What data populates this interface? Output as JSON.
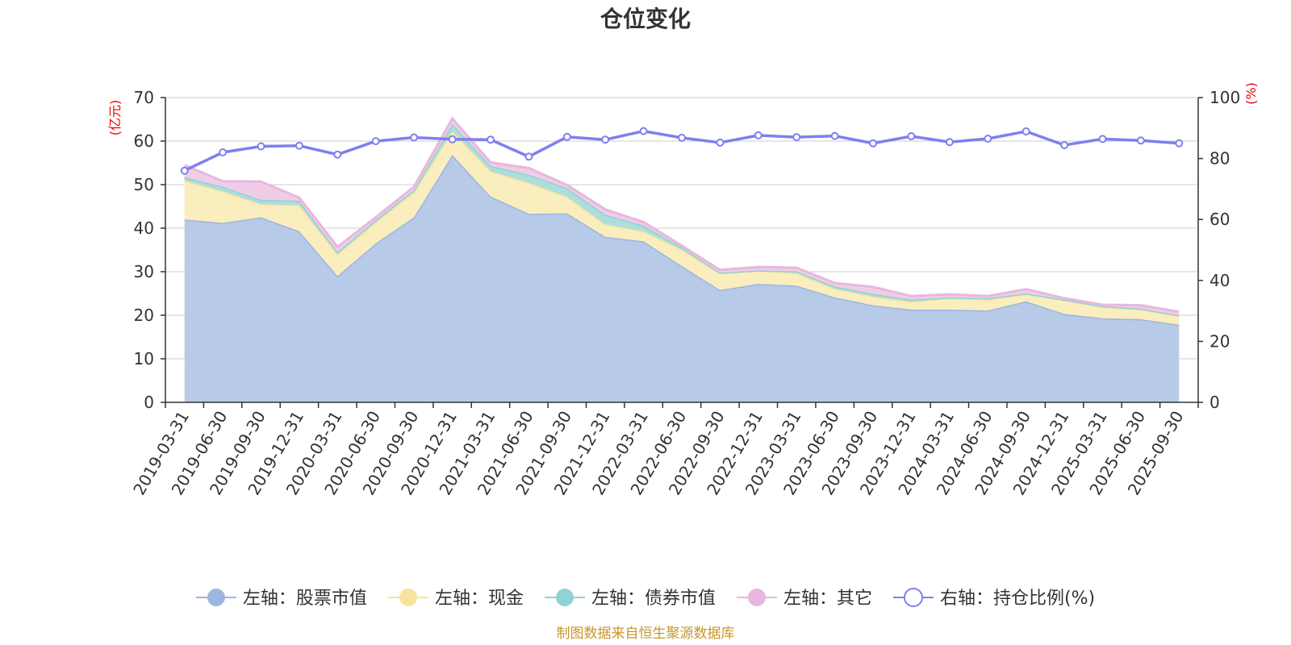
{
  "chart_data": {
    "type": "area",
    "title": "仓位变化",
    "left_unit": "(亿元)",
    "right_unit": "(%)",
    "x": [
      "2019-03-31",
      "2019-06-30",
      "2019-09-30",
      "2019-12-31",
      "2020-03-31",
      "2020-06-30",
      "2020-09-30",
      "2020-12-31",
      "2021-03-31",
      "2021-06-30",
      "2021-09-30",
      "2021-12-31",
      "2022-03-31",
      "2022-06-30",
      "2022-09-30",
      "2022-12-31",
      "2023-03-31",
      "2023-06-30",
      "2023-09-30",
      "2023-12-31",
      "2024-03-31",
      "2024-06-30",
      "2024-09-30",
      "2024-12-31",
      "2025-03-31",
      "2025-06-30",
      "2025-09-30"
    ],
    "y_left": {
      "min": 0,
      "max": 70,
      "ticks": [
        0,
        10,
        20,
        30,
        40,
        50,
        60,
        70
      ]
    },
    "y_right": {
      "min": 0,
      "max": 100,
      "ticks": [
        0,
        20,
        40,
        60,
        80,
        100
      ]
    },
    "series": [
      {
        "name": "左轴：股票市值",
        "axis": "left",
        "stack": true,
        "color": "#9bb6e0",
        "fill": "#b7cbe9",
        "values": [
          42.0,
          41.2,
          42.5,
          39.3,
          29.0,
          36.5,
          42.5,
          56.8,
          47.3,
          43.3,
          43.4,
          38.0,
          37.0,
          31.3,
          25.8,
          27.2,
          26.8,
          24.1,
          22.3,
          21.3,
          21.3,
          21.1,
          23.2,
          20.3,
          19.3,
          19.1,
          17.8
        ]
      },
      {
        "name": "左轴：现金",
        "axis": "left",
        "stack": true,
        "color": "#f8e39c",
        "fill": "#faedbe",
        "values": [
          8.9,
          7.3,
          3.0,
          6.0,
          5.0,
          4.9,
          5.8,
          5.5,
          5.8,
          7.1,
          3.8,
          2.9,
          2.3,
          3.8,
          3.8,
          3.0,
          2.9,
          2.0,
          2.0,
          1.8,
          2.6,
          2.5,
          1.7,
          3.2,
          2.7,
          2.3,
          2.0
        ]
      },
      {
        "name": "左轴：债券市值",
        "axis": "left",
        "stack": true,
        "color": "#8fd3d3",
        "fill": "#aedddd",
        "values": [
          0.8,
          1.0,
          1.0,
          1.0,
          0.5,
          0.5,
          0.4,
          1.6,
          1.2,
          1.9,
          2.0,
          2.2,
          1.3,
          0.5,
          0.2,
          0.1,
          0.4,
          0.5,
          0.6,
          0.5,
          0.2,
          0.3,
          0.1,
          0.1,
          0.1,
          0.1,
          0.2
        ]
      },
      {
        "name": "左轴：其它",
        "axis": "left",
        "stack": true,
        "color": "#e8b7de",
        "fill": "#f0cde6",
        "values": [
          2.8,
          1.3,
          4.2,
          0.7,
          1.2,
          0.6,
          0.8,
          1.3,
          0.8,
          1.5,
          0.7,
          1.2,
          0.8,
          0.4,
          0.6,
          0.8,
          0.8,
          0.8,
          1.6,
          0.8,
          0.7,
          0.5,
          1.0,
          0.3,
          0.3,
          0.8,
          0.8
        ]
      },
      {
        "name": "右轴：持仓比例(%)",
        "axis": "right",
        "stack": false,
        "color": "#7f7ff0",
        "values": [
          76.0,
          82.0,
          84.0,
          84.2,
          81.3,
          85.7,
          86.9,
          86.3,
          86.2,
          80.6,
          87.1,
          86.2,
          89.0,
          86.8,
          85.2,
          87.6,
          87.0,
          87.4,
          85.0,
          87.3,
          85.4,
          86.5,
          88.9,
          84.4,
          86.4,
          85.9,
          85.0
        ]
      }
    ],
    "legend_position": "bottom",
    "grid": true
  },
  "footer": {
    "source": "制图数据来自恒生聚源数据库"
  }
}
